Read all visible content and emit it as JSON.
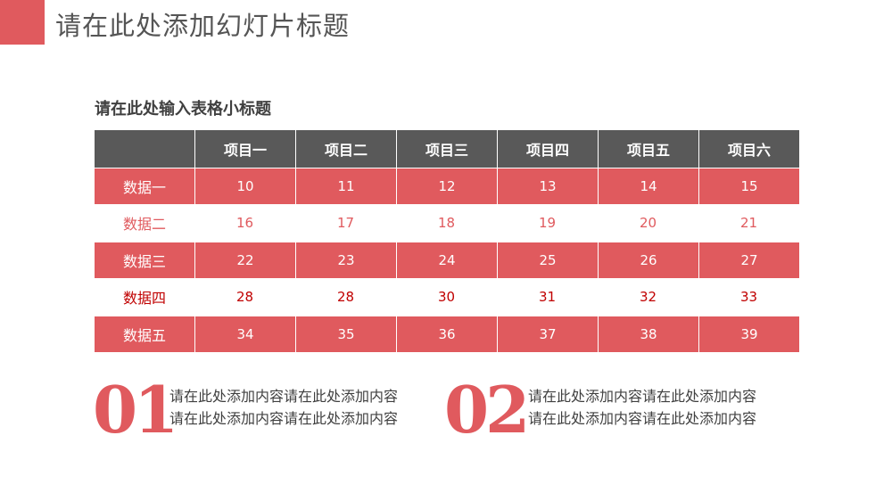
{
  "slide": {
    "title": "请在此处添加幻灯片标题",
    "subtitle": "请在此处输入表格小标题",
    "accent_color": "#e05a5e",
    "header_color": "#595959"
  },
  "table": {
    "headers": [
      "",
      "项目一",
      "项目二",
      "项目三",
      "项目四",
      "项目五",
      "项目六"
    ],
    "rows": [
      {
        "label": "数据一",
        "values": [
          "10",
          "11",
          "12",
          "13",
          "14",
          "15"
        ]
      },
      {
        "label": "数据二",
        "values": [
          "16",
          "17",
          "18",
          "19",
          "20",
          "21"
        ]
      },
      {
        "label": "数据三",
        "values": [
          "22",
          "23",
          "24",
          "25",
          "26",
          "27"
        ]
      },
      {
        "label": "数据四",
        "values": [
          "28",
          "28",
          "30",
          "31",
          "32",
          "33"
        ]
      },
      {
        "label": "数据五",
        "values": [
          "34",
          "35",
          "36",
          "37",
          "38",
          "39"
        ]
      }
    ]
  },
  "blocks": [
    {
      "number": "01",
      "lines": [
        "请在此处添加内容请在此处添加内容",
        "请在此处添加内容请在此处添加内容"
      ]
    },
    {
      "number": "02",
      "lines": [
        "请在此处添加内容请在此处添加内容",
        "请在此处添加内容请在此处添加内容"
      ]
    }
  ]
}
